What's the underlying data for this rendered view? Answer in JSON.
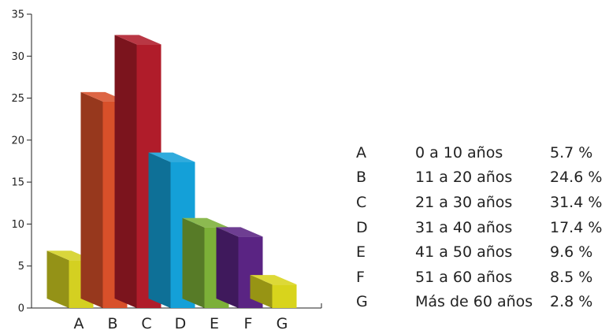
{
  "chart_data": {
    "type": "bar",
    "categories": [
      "A",
      "B",
      "C",
      "D",
      "E",
      "F",
      "G"
    ],
    "values": [
      5.7,
      24.6,
      31.4,
      17.4,
      9.6,
      8.5,
      2.8
    ],
    "ylim": [
      0,
      35
    ],
    "yticks": [
      0,
      5,
      10,
      15,
      20,
      25,
      30,
      35
    ],
    "grid": false,
    "style": "3d-bars",
    "colors": [
      "#d4d021",
      "#d8502a",
      "#b01c2a",
      "#14a0d8",
      "#7cb038",
      "#5a2483",
      "#d8d41c"
    ],
    "legend": {
      "placement": "right",
      "entries": [
        {
          "letter": "A",
          "label": "0 a 10 años",
          "percent": "5.7 %"
        },
        {
          "letter": "B",
          "label": "11 a 20 años",
          "percent": "24.6 %"
        },
        {
          "letter": "C",
          "label": "21 a 30 años",
          "percent": "31.4 %"
        },
        {
          "letter": "D",
          "label": "31 a 40 años",
          "percent": "17.4 %"
        },
        {
          "letter": "E",
          "label": "41 a 50 años",
          "percent": "9.6 %"
        },
        {
          "letter": "F",
          "label": "51 a 60 años",
          "percent": "8.5 %"
        },
        {
          "letter": "G",
          "label": "Más de 60 años",
          "percent": "2.8 %"
        }
      ]
    }
  }
}
